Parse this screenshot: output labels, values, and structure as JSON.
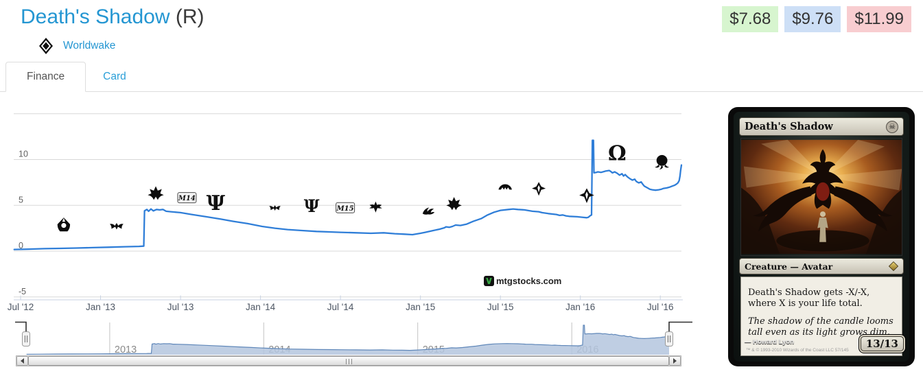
{
  "header": {
    "title": "Death's Shadow",
    "rarity": "(R)",
    "set_name": "Worldwake",
    "prices": {
      "low": "$7.68",
      "avg": "$9.76",
      "high": "$11.99"
    }
  },
  "tabs": {
    "finance": "Finance",
    "card": "Card"
  },
  "watermark": "mtgstocks.com",
  "chart_data": {
    "type": "line",
    "title": "",
    "xlabel": "",
    "ylabel": "",
    "grid": true,
    "legend": false,
    "xlim": [
      2012.457,
      2016.632
    ],
    "ylim": [
      -5.3,
      15.4
    ],
    "yticks": [
      {
        "v": -5,
        "label": "-5"
      },
      {
        "v": 0,
        "label": "0"
      },
      {
        "v": 5,
        "label": "5"
      },
      {
        "v": 10,
        "label": "10"
      },
      {
        "v": 15,
        "label": ""
      }
    ],
    "xticks": [
      {
        "t": 2012.5,
        "label": "Jul '12"
      },
      {
        "t": 2013.0,
        "label": "Jan '13"
      },
      {
        "t": 2013.5,
        "label": "Jul '13"
      },
      {
        "t": 2014.0,
        "label": "Jan '14"
      },
      {
        "t": 2014.5,
        "label": "Jul '14"
      },
      {
        "t": 2015.0,
        "label": "Jan '15"
      },
      {
        "t": 2015.5,
        "label": "Jul '15"
      },
      {
        "t": 2016.0,
        "label": "Jan '16"
      },
      {
        "t": 2016.5,
        "label": "Jul '16"
      }
    ],
    "series": [
      {
        "name": "price",
        "color": "#2f7ed8",
        "points": [
          [
            2012.46,
            0.18
          ],
          [
            2012.55,
            0.22
          ],
          [
            2012.65,
            0.27
          ],
          [
            2012.75,
            0.3
          ],
          [
            2012.85,
            0.34
          ],
          [
            2012.95,
            0.38
          ],
          [
            2013.05,
            0.43
          ],
          [
            2013.15,
            0.48
          ],
          [
            2013.24,
            0.52
          ],
          [
            2013.27,
            0.55
          ],
          [
            2013.275,
            4.4
          ],
          [
            2013.29,
            4.55
          ],
          [
            2013.3,
            4.35
          ],
          [
            2013.315,
            4.6
          ],
          [
            2013.33,
            4.4
          ],
          [
            2013.35,
            4.55
          ],
          [
            2013.37,
            4.5
          ],
          [
            2013.39,
            4.55
          ],
          [
            2013.41,
            4.35
          ],
          [
            2013.44,
            4.3
          ],
          [
            2013.5,
            4.2
          ],
          [
            2013.57,
            4.0
          ],
          [
            2013.66,
            3.75
          ],
          [
            2013.75,
            3.5
          ],
          [
            2013.83,
            3.25
          ],
          [
            2013.92,
            3.0
          ],
          [
            2014.01,
            2.7
          ],
          [
            2014.09,
            2.5
          ],
          [
            2014.17,
            2.35
          ],
          [
            2014.26,
            2.25
          ],
          [
            2014.35,
            2.15
          ],
          [
            2014.43,
            2.1
          ],
          [
            2014.5,
            2.05
          ],
          [
            2014.6,
            2.0
          ],
          [
            2014.69,
            1.95
          ],
          [
            2014.77,
            2.0
          ],
          [
            2014.84,
            1.9
          ],
          [
            2014.9,
            1.85
          ],
          [
            2014.95,
            1.8
          ],
          [
            2015.0,
            1.95
          ],
          [
            2015.03,
            2.05
          ],
          [
            2015.08,
            2.25
          ],
          [
            2015.12,
            2.4
          ],
          [
            2015.15,
            2.55
          ],
          [
            2015.16,
            2.65
          ],
          [
            2015.18,
            2.6
          ],
          [
            2015.2,
            2.7
          ],
          [
            2015.22,
            2.85
          ],
          [
            2015.25,
            2.8
          ],
          [
            2015.29,
            2.95
          ],
          [
            2015.33,
            3.25
          ],
          [
            2015.38,
            3.55
          ],
          [
            2015.42,
            3.95
          ],
          [
            2015.46,
            4.25
          ],
          [
            2015.5,
            4.45
          ],
          [
            2015.55,
            4.55
          ],
          [
            2015.58,
            4.6
          ],
          [
            2015.61,
            4.55
          ],
          [
            2015.65,
            4.5
          ],
          [
            2015.7,
            4.35
          ],
          [
            2015.74,
            4.3
          ],
          [
            2015.76,
            4.2
          ],
          [
            2015.8,
            4.1
          ],
          [
            2015.85,
            4.0
          ],
          [
            2015.87,
            3.9
          ],
          [
            2015.89,
            3.95
          ],
          [
            2015.91,
            3.85
          ],
          [
            2015.93,
            3.8
          ],
          [
            2015.98,
            3.75
          ],
          [
            2016.01,
            3.7
          ],
          [
            2016.04,
            3.65
          ],
          [
            2016.05,
            3.7
          ],
          [
            2016.06,
            3.85
          ],
          [
            2016.07,
            3.95
          ],
          [
            2016.075,
            12.1
          ],
          [
            2016.082,
            12.1
          ],
          [
            2016.085,
            8.55
          ],
          [
            2016.1,
            8.6
          ],
          [
            2016.11,
            8.65
          ],
          [
            2016.13,
            8.6
          ],
          [
            2016.15,
            8.7
          ],
          [
            2016.16,
            8.75
          ],
          [
            2016.18,
            8.8
          ],
          [
            2016.19,
            8.7
          ],
          [
            2016.2,
            8.55
          ],
          [
            2016.215,
            8.65
          ],
          [
            2016.23,
            8.5
          ],
          [
            2016.245,
            8.3
          ],
          [
            2016.26,
            8.45
          ],
          [
            2016.27,
            8.2
          ],
          [
            2016.28,
            8.35
          ],
          [
            2016.295,
            8.1
          ],
          [
            2016.31,
            7.9
          ],
          [
            2016.325,
            7.75
          ],
          [
            2016.34,
            7.85
          ],
          [
            2016.35,
            7.6
          ],
          [
            2016.365,
            7.45
          ],
          [
            2016.38,
            7.55
          ],
          [
            2016.39,
            7.3
          ],
          [
            2016.4,
            7.1
          ],
          [
            2016.42,
            6.9
          ],
          [
            2016.435,
            6.75
          ],
          [
            2016.45,
            6.7
          ],
          [
            2016.47,
            6.65
          ],
          [
            2016.49,
            6.7
          ],
          [
            2016.505,
            6.75
          ],
          [
            2016.52,
            6.85
          ],
          [
            2016.54,
            6.9
          ],
          [
            2016.56,
            7.0
          ],
          [
            2016.575,
            7.1
          ],
          [
            2016.59,
            7.2
          ],
          [
            2016.6,
            7.3
          ],
          [
            2016.61,
            7.45
          ],
          [
            2016.618,
            7.7
          ],
          [
            2016.623,
            8.2
          ],
          [
            2016.627,
            8.8
          ],
          [
            2016.632,
            9.4
          ]
        ]
      }
    ],
    "annotations": [
      {
        "id": "return-to-ravnica",
        "glyph": "nib",
        "size": 26,
        "t": 2012.77,
        "v": 2.85
      },
      {
        "id": "gatecrash",
        "glyph": "bat",
        "size": 24,
        "t": 2013.1,
        "v": 2.7
      },
      {
        "id": "dragons-maze",
        "glyph": "crest",
        "size": 28,
        "t": 2013.345,
        "v": 6.3
      },
      {
        "id": "m14",
        "glyph": "badge",
        "label": "M14",
        "t": 2013.54,
        "v": 5.8
      },
      {
        "id": "theros",
        "glyph": "char:Ψ",
        "size": 30,
        "t": 2013.72,
        "v": 5.3
      },
      {
        "id": "born-of-the-gods",
        "glyph": "bat",
        "size": 20,
        "t": 2014.09,
        "v": 4.7
      },
      {
        "id": "journey-into-nyx",
        "glyph": "char:Ψ",
        "size": 25,
        "t": 2014.32,
        "v": 4.95
      },
      {
        "id": "m15",
        "glyph": "badge",
        "label": "M15",
        "t": 2014.53,
        "v": 4.7
      },
      {
        "id": "khans-of-tarkir",
        "glyph": "dragon",
        "size": 25,
        "t": 2014.72,
        "v": 4.8
      },
      {
        "id": "fate-reforged",
        "glyph": "claw",
        "size": 24,
        "t": 2015.05,
        "v": 4.35
      },
      {
        "id": "dragons-of-tarkir",
        "glyph": "crest",
        "size": 27,
        "t": 2015.21,
        "v": 5.15
      },
      {
        "id": "magic-origins",
        "glyph": "arc",
        "size": 26,
        "t": 2015.53,
        "v": 7.0
      },
      {
        "id": "battle-for-zendikar",
        "glyph": "hedron",
        "size": 24,
        "t": 2015.74,
        "v": 6.8
      },
      {
        "id": "oath-of-the-gatewatch",
        "glyph": "hedron",
        "size": 26,
        "t": 2016.04,
        "v": 6.05
      },
      {
        "id": "shadows-over-innistrad",
        "glyph": "char:Ω",
        "size": 30,
        "t": 2016.23,
        "v": 10.75
      },
      {
        "id": "eldritch-moon",
        "glyph": "moon",
        "size": 28,
        "t": 2016.51,
        "v": 9.75
      }
    ],
    "navigator": {
      "type": "area",
      "years": [
        {
          "t": 2013,
          "label": "2013"
        },
        {
          "t": 2014,
          "label": "2014"
        },
        {
          "t": 2015,
          "label": "2015"
        },
        {
          "t": 2016,
          "label": "2016"
        }
      ]
    }
  },
  "card": {
    "title": "Death's Shadow",
    "mana": "☠",
    "type_line": "Creature — Avatar",
    "rules_text": "Death's Shadow gets -X/-X, where X is your life total.",
    "flavor_text": "The shadow of the candle looms tall even as its light grows dim.",
    "artist": "Howard Lyon",
    "artist_prefix": "—",
    "copyright": "™ & © 1993-2010 Wizards of the Coast LLC 57/145",
    "pt": "13/13"
  }
}
